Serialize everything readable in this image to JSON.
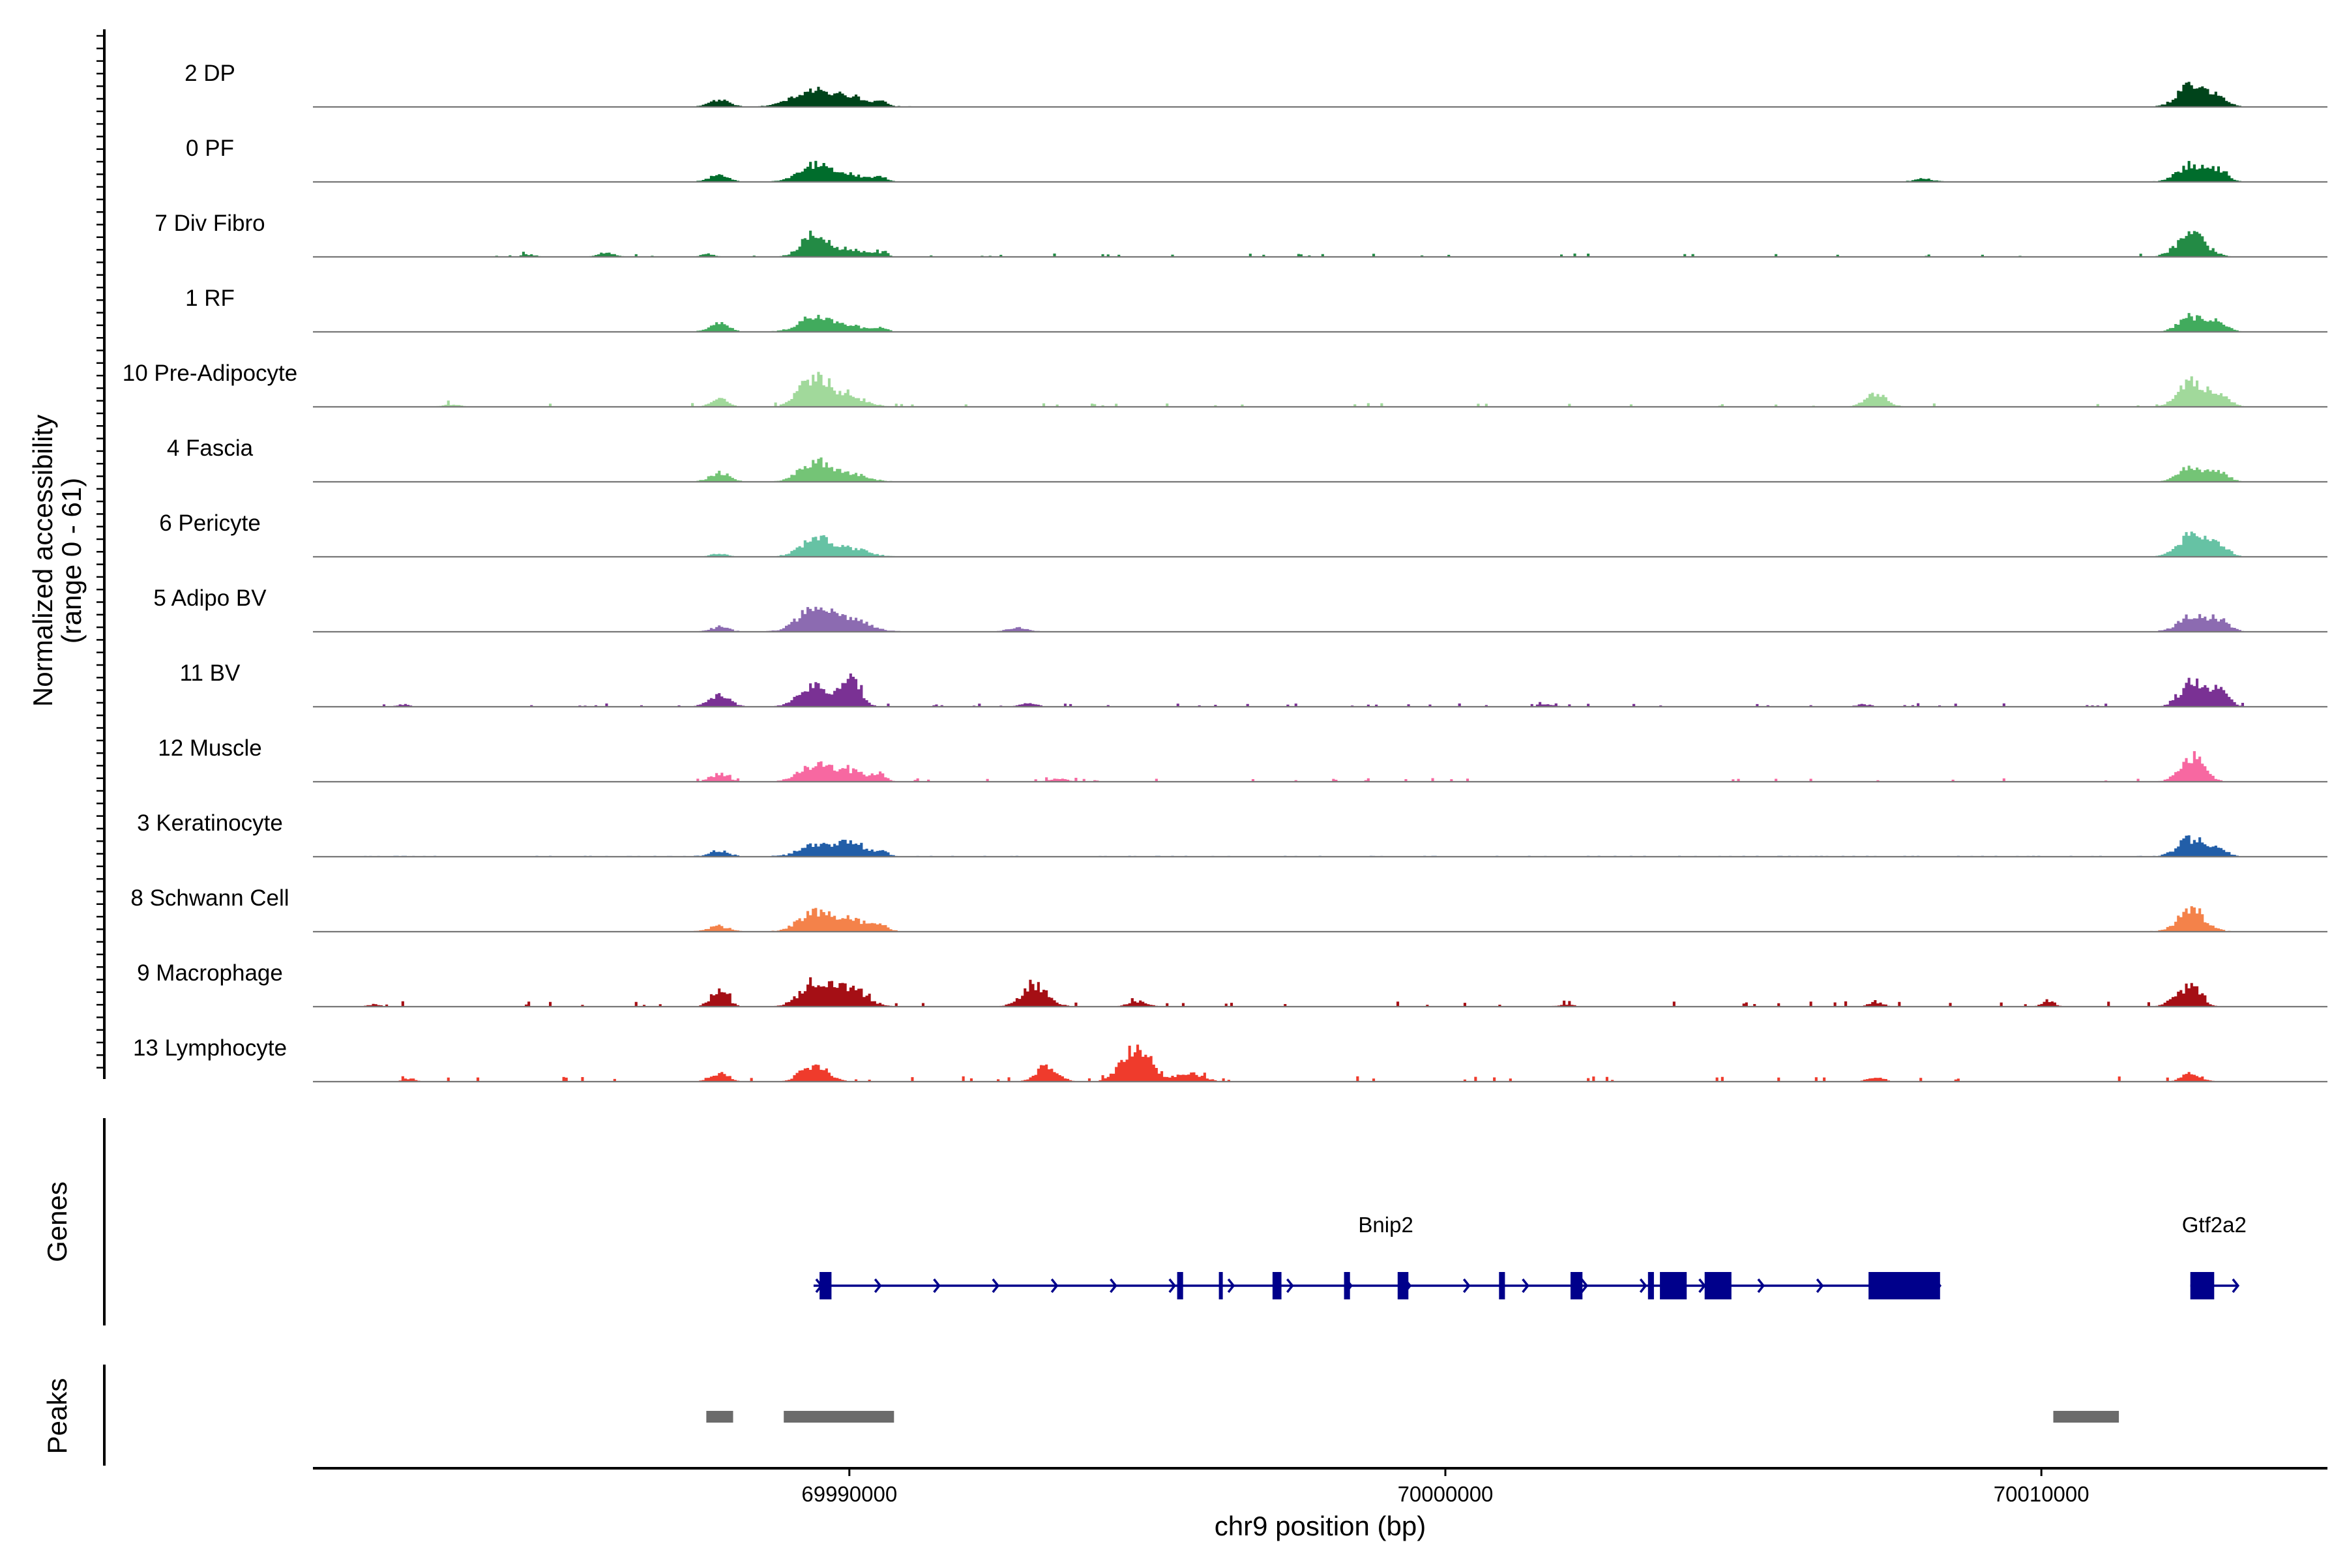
{
  "chart_data": {
    "type": "area",
    "title": "",
    "y_axis_title_lines": [
      "Normalized accessibility",
      "(range 0 - 61)"
    ],
    "xlabel": "chr9 position (bp)",
    "xlim": [
      69981000,
      70014800
    ],
    "ylim": [
      0,
      61
    ],
    "x_ticks": [
      {
        "value": 69990000,
        "label": "69990000"
      },
      {
        "value": 70000000,
        "label": "70000000"
      },
      {
        "value": 70010000,
        "label": "70010000"
      }
    ],
    "tracks": [
      {
        "name": "2 DP",
        "color": "#00441b",
        "peaks": [
          [
            69987800,
            9,
            160
          ],
          [
            69989300,
            19,
            300
          ],
          [
            69989900,
            13,
            350
          ],
          [
            69990500,
            5,
            100
          ],
          [
            70012500,
            27,
            220
          ],
          [
            70012900,
            10,
            200
          ]
        ],
        "noise": 0.6,
        "noise_range": [
          69986000,
          70013200
        ]
      },
      {
        "name": "0 PF",
        "color": "#006d2c",
        "peaks": [
          [
            69987800,
            9,
            160
          ],
          [
            69989400,
            20,
            260
          ],
          [
            69990000,
            8,
            280
          ],
          [
            69990500,
            5,
            100
          ],
          [
            70008000,
            4,
            150
          ],
          [
            70012500,
            21,
            220
          ],
          [
            70012950,
            14,
            160
          ]
        ],
        "noise": 0.5,
        "noise_range": [
          69986000,
          70013200
        ]
      },
      {
        "name": "7 Div Fibro",
        "color": "#238b45",
        "peaks": [
          [
            69984600,
            3,
            120
          ],
          [
            69985900,
            5,
            140
          ],
          [
            69987600,
            4,
            110
          ],
          [
            69989400,
            27,
            220
          ],
          [
            69990000,
            9,
            250
          ],
          [
            69990500,
            4,
            120
          ],
          [
            70012500,
            27,
            240
          ]
        ],
        "noise": 1.0,
        "noise_range": [
          69983500,
          70013200
        ],
        "sparse": true
      },
      {
        "name": "1 RF",
        "color": "#41ab5d",
        "peaks": [
          [
            69987800,
            10,
            160
          ],
          [
            69989400,
            18,
            260
          ],
          [
            69990000,
            7,
            250
          ],
          [
            69990500,
            5,
            100
          ],
          [
            70012500,
            19,
            200
          ],
          [
            70012950,
            12,
            160
          ]
        ],
        "noise": 0.5,
        "noise_range": [
          69986000,
          70013200
        ]
      },
      {
        "name": "10 Pre-Adipocyte",
        "color": "#a1d99b",
        "peaks": [
          [
            69983300,
            3,
            150
          ],
          [
            69987800,
            10,
            140
          ],
          [
            69989400,
            38,
            240
          ],
          [
            69990000,
            12,
            280
          ],
          [
            70007200,
            15,
            180
          ],
          [
            70012500,
            30,
            220
          ],
          [
            70012950,
            14,
            180
          ]
        ],
        "noise": 1.1,
        "noise_range": [
          69983000,
          70013200
        ],
        "sparse": true
      },
      {
        "name": "4 Fascia",
        "color": "#74c476",
        "peaks": [
          [
            69987800,
            11,
            160
          ],
          [
            69989400,
            25,
            240
          ],
          [
            69990000,
            10,
            260
          ],
          [
            70012500,
            19,
            200
          ],
          [
            70012950,
            12,
            160
          ]
        ],
        "noise": 0.5,
        "noise_range": [
          69986000,
          70013200
        ]
      },
      {
        "name": "6 Pericyte",
        "color": "#66c2a4",
        "peaks": [
          [
            69987800,
            4,
            120
          ],
          [
            69989400,
            23,
            240
          ],
          [
            69990000,
            10,
            280
          ],
          [
            70012500,
            28,
            220
          ],
          [
            70012950,
            12,
            180
          ]
        ],
        "noise": 0.5,
        "noise_range": [
          69986000,
          70013200
        ]
      },
      {
        "name": "5 Adipo BV",
        "color": "#8c6bb1",
        "peaks": [
          [
            69987800,
            6,
            150
          ],
          [
            69989400,
            32,
            260
          ],
          [
            69990000,
            14,
            300
          ],
          [
            69992800,
            5,
            150
          ],
          [
            70012500,
            18,
            220
          ],
          [
            70012950,
            15,
            180
          ]
        ],
        "noise": 0.6,
        "noise_range": [
          69986000,
          70013200
        ]
      },
      {
        "name": "11 BV",
        "color": "#7a3194",
        "peaks": [
          [
            69982500,
            3,
            100
          ],
          [
            69987800,
            14,
            180
          ],
          [
            69989400,
            24,
            260
          ],
          [
            69990000,
            36,
            160
          ],
          [
            69993000,
            4,
            150
          ],
          [
            70001700,
            3,
            120
          ],
          [
            70007000,
            3,
            120
          ],
          [
            70012500,
            30,
            200
          ],
          [
            70012950,
            22,
            160
          ]
        ],
        "noise": 1.0,
        "noise_range": [
          69982000,
          70013400
        ],
        "sparse": true
      },
      {
        "name": "12 Muscle",
        "color": "#f768a1",
        "peaks": [
          [
            69987800,
            10,
            150
          ],
          [
            69989400,
            21,
            260
          ],
          [
            69990000,
            13,
            260
          ],
          [
            69990500,
            8,
            100
          ],
          [
            69993500,
            4,
            140
          ],
          [
            70012500,
            31,
            200
          ]
        ],
        "noise": 1.0,
        "noise_range": [
          69987000,
          70013200
        ],
        "sparse": true
      },
      {
        "name": "3 Keratinocyte",
        "color": "#225ea8",
        "peaks": [
          [
            69987800,
            7,
            160
          ],
          [
            69989400,
            14,
            260
          ],
          [
            69990000,
            18,
            220
          ],
          [
            69990500,
            6,
            120
          ],
          [
            70012500,
            22,
            220
          ],
          [
            70012950,
            8,
            160
          ]
        ],
        "noise": 0.8,
        "noise_range": [
          69981500,
          70013200
        ]
      },
      {
        "name": "8 Schwann Cell",
        "color": "#f4824a",
        "peaks": [
          [
            69987800,
            7,
            160
          ],
          [
            69989400,
            23,
            260
          ],
          [
            69990000,
            14,
            280
          ],
          [
            69990500,
            7,
            120
          ],
          [
            70012500,
            27,
            220
          ]
        ],
        "noise": 0.6,
        "noise_range": [
          69983000,
          70013200
        ]
      },
      {
        "name": "9 Macrophage",
        "color": "#a50f15",
        "peaks": [
          [
            69982000,
            3,
            100
          ],
          [
            69987800,
            21,
            140
          ],
          [
            69989400,
            31,
            240
          ],
          [
            69990000,
            23,
            260
          ],
          [
            69993100,
            25,
            220
          ],
          [
            69994800,
            7,
            160
          ],
          [
            70002000,
            3,
            130
          ],
          [
            70007200,
            5,
            130
          ],
          [
            70010100,
            8,
            100
          ],
          [
            70012200,
            7,
            140
          ],
          [
            70012500,
            25,
            160
          ]
        ],
        "noise": 1.5,
        "noise_range": [
          69982000,
          70013200
        ],
        "sparse": true
      },
      {
        "name": "13 Lymphocyte",
        "color": "#ef3b2c",
        "peaks": [
          [
            69982600,
            4,
            100
          ],
          [
            69987800,
            10,
            160
          ],
          [
            69989400,
            22,
            220
          ],
          [
            69993300,
            18,
            180
          ],
          [
            69994800,
            44,
            240
          ],
          [
            69995700,
            10,
            220
          ],
          [
            70007200,
            6,
            130
          ],
          [
            70012500,
            10,
            160
          ]
        ],
        "noise": 1.5,
        "noise_range": [
          69982000,
          70013200
        ],
        "sparse": true
      }
    ],
    "genes_panel_label": "Genes",
    "genes": [
      {
        "name": "Bnip2",
        "strand": "+",
        "start": 69989400,
        "end": 70008300,
        "color": "#00008b",
        "exons": [
          [
            69989500,
            69989700
          ],
          [
            69995500,
            69995600
          ],
          [
            69996200,
            69996230
          ],
          [
            69997100,
            69997250
          ],
          [
            69998300,
            69998400
          ],
          [
            69999200,
            69999380
          ],
          [
            70000900,
            70001000
          ],
          [
            70002100,
            70002300
          ],
          [
            70003400,
            70003500
          ],
          [
            70003600,
            70004050
          ],
          [
            70004350,
            70004800
          ],
          [
            70007100,
            70008300
          ]
        ],
        "label_x": 69999000
      },
      {
        "name": "Gtf2a2",
        "strand": "+",
        "start": 70012500,
        "end": 70013300,
        "color": "#00008b",
        "exons": [
          [
            70012500,
            70012900
          ]
        ],
        "label_x": 70012900
      }
    ],
    "peaks_panel_label": "Peaks",
    "peaks": [
      [
        69987600,
        69988050
      ],
      [
        69988900,
        69990750
      ],
      [
        70010200,
        70011300
      ]
    ],
    "peak_color": "#6b6b6b",
    "legend": "none",
    "grid": false
  }
}
